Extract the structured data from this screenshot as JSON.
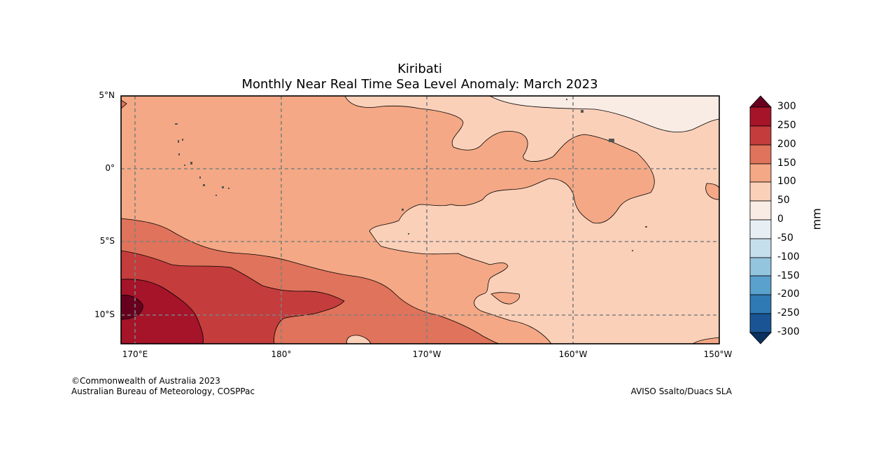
{
  "title": "Kiribati",
  "subtitle": "Monthly Near Real Time Sea Level Anomaly: March 2023",
  "lat_labels": [
    "5°N",
    "0°",
    "5°S",
    "10°S"
  ],
  "lon_labels": [
    "170°E",
    "180°",
    "170°W",
    "160°W",
    "150°W"
  ],
  "colorbar": {
    "unit": "mm",
    "ticks": [
      "300",
      "250",
      "200",
      "150",
      "100",
      "50",
      "0",
      "-50",
      "-100",
      "-150",
      "-200",
      "-250",
      "-300"
    ],
    "colors": [
      "#67001f",
      "#a51429",
      "#c43c3c",
      "#e0735b",
      "#f4a885",
      "#fbd0b9",
      "#f9ece4",
      "#e8eff4",
      "#c6dfed",
      "#94c5df",
      "#5aa1cd",
      "#2f79b5",
      "#1a5494",
      "#0a3060"
    ]
  },
  "credits": {
    "left_line1": "©Commonwealth of Australia 2023",
    "left_line2": "Australian Bureau of Meteorology, COSPPac",
    "right": "AVISO Ssalto/Duacs SLA"
  }
}
